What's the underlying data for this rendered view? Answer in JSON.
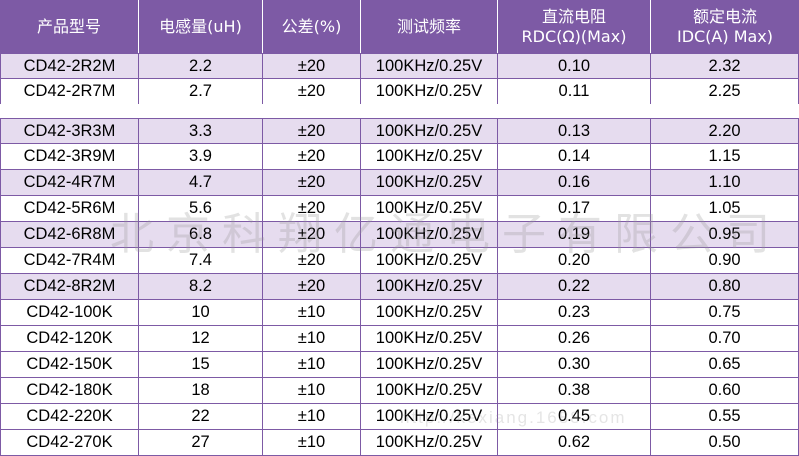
{
  "headers": {
    "model": "产品型号",
    "inductance": "电感量(uH)",
    "tolerance": "公差(%)",
    "test_freq": "测试频率",
    "dcr_line1": "直流电阻",
    "dcr_line2": "RDC(Ω)(Max)",
    "idc_line1": "额定电流",
    "idc_line2": "IDC(A)  Max)"
  },
  "rows": [
    {
      "model": "CD42-2R2M",
      "inductance": "2.2",
      "tolerance": "±20",
      "freq": "100KHz/0.25V",
      "rdc": "0.10",
      "idc": "2.32"
    },
    {
      "model": "CD42-2R7M",
      "inductance": "2.7",
      "tolerance": "±20",
      "freq": "100KHz/0.25V",
      "rdc": "0.11",
      "idc": "2.25"
    },
    {
      "model": "CD42-3R3M",
      "inductance": "3.3",
      "tolerance": "±20",
      "freq": "100KHz/0.25V",
      "rdc": "0.13",
      "idc": "2.20"
    },
    {
      "model": "CD42-3R9M",
      "inductance": "3.9",
      "tolerance": "±20",
      "freq": "100KHz/0.25V",
      "rdc": "0.14",
      "idc": "1.15"
    },
    {
      "model": "CD42-4R7M",
      "inductance": "4.7",
      "tolerance": "±20",
      "freq": "100KHz/0.25V",
      "rdc": "0.16",
      "idc": "1.10"
    },
    {
      "model": "CD42-5R6M",
      "inductance": "5.6",
      "tolerance": "±20",
      "freq": "100KHz/0.25V",
      "rdc": "0.17",
      "idc": "1.05"
    },
    {
      "model": "CD42-6R8M",
      "inductance": "6.8",
      "tolerance": "±20",
      "freq": "100KHz/0.25V",
      "rdc": "0.19",
      "idc": "0.95"
    },
    {
      "model": "CD42-7R4M",
      "inductance": "7.4",
      "tolerance": "±20",
      "freq": "100KHz/0.25V",
      "rdc": "0.20",
      "idc": "0.90"
    },
    {
      "model": "CD42-8R2M",
      "inductance": "8.2",
      "tolerance": "±20",
      "freq": "100KHz/0.25V",
      "rdc": "0.22",
      "idc": "0.80"
    },
    {
      "model": "CD42-100K",
      "inductance": "10",
      "tolerance": "±10",
      "freq": "100KHz/0.25V",
      "rdc": "0.23",
      "idc": "0.75"
    },
    {
      "model": "CD42-120K",
      "inductance": "12",
      "tolerance": "±10",
      "freq": "100KHz/0.25V",
      "rdc": "0.26",
      "idc": "0.70"
    },
    {
      "model": "CD42-150K",
      "inductance": "15",
      "tolerance": "±10",
      "freq": "100KHz/0.25V",
      "rdc": "0.30",
      "idc": "0.65"
    },
    {
      "model": "CD42-180K",
      "inductance": "18",
      "tolerance": "±10",
      "freq": "100KHz/0.25V",
      "rdc": "0.38",
      "idc": "0.60"
    },
    {
      "model": "CD42-220K",
      "inductance": "22",
      "tolerance": "±10",
      "freq": "100KHz/0.25V",
      "rdc": "0.45",
      "idc": "0.55"
    },
    {
      "model": "CD42-270K",
      "inductance": "27",
      "tolerance": "±10",
      "freq": "100KHz/0.25V",
      "rdc": "0.62",
      "idc": "0.50"
    }
  ],
  "watermark": "北京科翔亿通电子有限公司",
  "watermark_url": "http://kexiang.1688.com",
  "colors": {
    "header_bg": "#7d5aa5",
    "row_shade": "#e6dcef",
    "border": "#7d5aa5",
    "header_text": "#ffffff"
  }
}
